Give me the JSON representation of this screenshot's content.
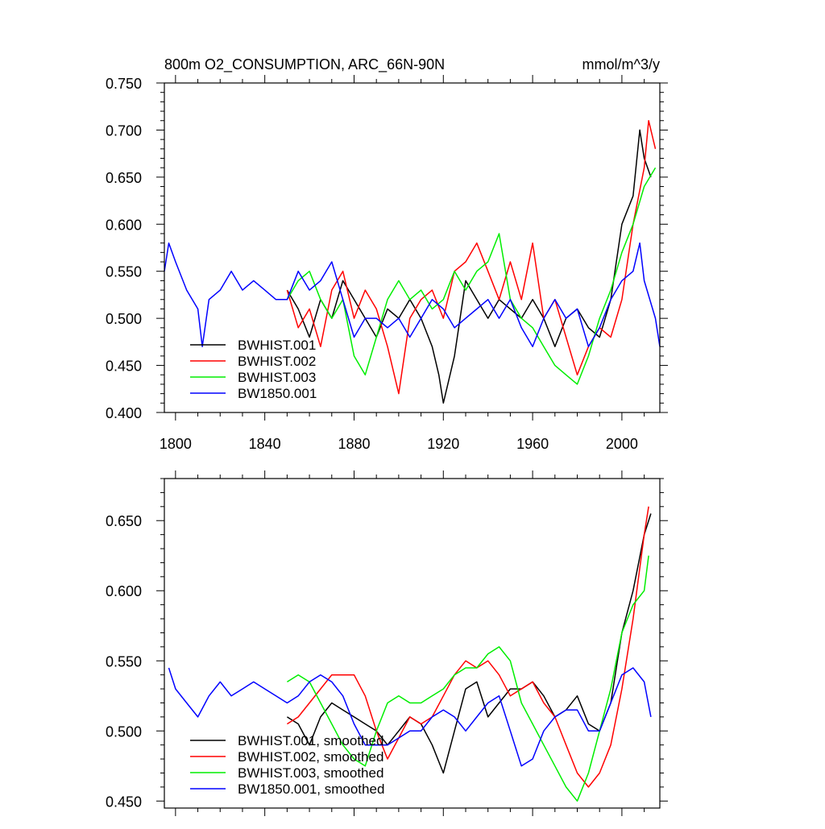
{
  "chart_data": [
    {
      "type": "line",
      "title": "800m O2_CONSUMPTION, ARC_66N-90N",
      "units": "mmol/m^3/y",
      "xlim": [
        1795,
        2017
      ],
      "ylim": [
        0.4,
        0.75
      ],
      "xticks": [
        1800,
        1840,
        1880,
        1920,
        1960,
        2000
      ],
      "yticks": [
        "0.400",
        "0.450",
        "0.500",
        "0.550",
        "0.600",
        "0.650",
        "0.700",
        "0.750"
      ],
      "legend_position": "bottom-left",
      "series": [
        {
          "name": "BWHIST.001",
          "color": "#000000",
          "x": [
            1850,
            1855,
            1860,
            1865,
            1870,
            1875,
            1880,
            1885,
            1890,
            1895,
            1900,
            1905,
            1910,
            1915,
            1918,
            1920,
            1925,
            1930,
            1935,
            1940,
            1945,
            1950,
            1955,
            1960,
            1965,
            1970,
            1975,
            1980,
            1985,
            1990,
            1995,
            2000,
            2005,
            2008,
            2010,
            2013
          ],
          "y": [
            0.53,
            0.51,
            0.48,
            0.52,
            0.5,
            0.54,
            0.52,
            0.5,
            0.48,
            0.51,
            0.5,
            0.52,
            0.5,
            0.47,
            0.44,
            0.41,
            0.46,
            0.54,
            0.52,
            0.5,
            0.52,
            0.51,
            0.5,
            0.52,
            0.5,
            0.47,
            0.5,
            0.51,
            0.49,
            0.48,
            0.52,
            0.6,
            0.63,
            0.7,
            0.67,
            0.65
          ]
        },
        {
          "name": "BWHIST.002",
          "color": "#ff0000",
          "x": [
            1850,
            1855,
            1860,
            1865,
            1870,
            1875,
            1880,
            1885,
            1890,
            1895,
            1900,
            1905,
            1910,
            1915,
            1920,
            1925,
            1930,
            1935,
            1940,
            1945,
            1950,
            1955,
            1960,
            1965,
            1970,
            1975,
            1980,
            1985,
            1990,
            1995,
            2000,
            2005,
            2010,
            2012,
            2015
          ],
          "y": [
            0.53,
            0.49,
            0.51,
            0.47,
            0.53,
            0.55,
            0.5,
            0.53,
            0.51,
            0.47,
            0.42,
            0.5,
            0.52,
            0.53,
            0.5,
            0.55,
            0.56,
            0.58,
            0.55,
            0.52,
            0.56,
            0.52,
            0.58,
            0.5,
            0.52,
            0.48,
            0.44,
            0.47,
            0.49,
            0.48,
            0.52,
            0.6,
            0.66,
            0.71,
            0.68
          ]
        },
        {
          "name": "BWHIST.003",
          "color": "#00ee00",
          "x": [
            1850,
            1855,
            1860,
            1865,
            1870,
            1875,
            1880,
            1885,
            1890,
            1895,
            1900,
            1905,
            1910,
            1915,
            1920,
            1925,
            1930,
            1935,
            1940,
            1945,
            1950,
            1955,
            1960,
            1965,
            1970,
            1975,
            1980,
            1985,
            1990,
            1995,
            2000,
            2005,
            2010,
            2015
          ],
          "y": [
            0.52,
            0.54,
            0.55,
            0.52,
            0.5,
            0.52,
            0.46,
            0.44,
            0.48,
            0.52,
            0.54,
            0.52,
            0.53,
            0.51,
            0.52,
            0.55,
            0.53,
            0.55,
            0.56,
            0.59,
            0.52,
            0.5,
            0.49,
            0.47,
            0.45,
            0.44,
            0.43,
            0.46,
            0.5,
            0.53,
            0.57,
            0.6,
            0.64,
            0.66
          ]
        },
        {
          "name": "BW1850.001",
          "color": "#0000ff",
          "x": [
            1795,
            1797,
            1800,
            1805,
            1810,
            1812,
            1815,
            1820,
            1825,
            1830,
            1835,
            1840,
            1845,
            1850,
            1855,
            1860,
            1865,
            1870,
            1875,
            1880,
            1885,
            1890,
            1895,
            1900,
            1905,
            1910,
            1915,
            1920,
            1925,
            1930,
            1935,
            1940,
            1945,
            1950,
            1955,
            1960,
            1965,
            1970,
            1975,
            1980,
            1985,
            1990,
            1995,
            2000,
            2005,
            2008,
            2010,
            2015,
            2017
          ],
          "y": [
            0.55,
            0.58,
            0.56,
            0.53,
            0.51,
            0.47,
            0.52,
            0.53,
            0.55,
            0.53,
            0.54,
            0.53,
            0.52,
            0.52,
            0.55,
            0.53,
            0.54,
            0.56,
            0.52,
            0.48,
            0.5,
            0.5,
            0.49,
            0.5,
            0.48,
            0.5,
            0.52,
            0.51,
            0.49,
            0.5,
            0.51,
            0.52,
            0.5,
            0.52,
            0.49,
            0.47,
            0.5,
            0.52,
            0.5,
            0.51,
            0.47,
            0.49,
            0.52,
            0.54,
            0.55,
            0.58,
            0.54,
            0.5,
            0.47
          ]
        }
      ]
    },
    {
      "type": "line",
      "xlim": [
        1795,
        2017
      ],
      "ylim": [
        0.445,
        0.68
      ],
      "yticks": [
        "0.450",
        "0.500",
        "0.550",
        "0.600",
        "0.650"
      ],
      "legend_position": "bottom-left",
      "series": [
        {
          "name": "BWHIST.001, smoothed",
          "color": "#000000",
          "x": [
            1850,
            1855,
            1860,
            1865,
            1870,
            1875,
            1880,
            1885,
            1890,
            1895,
            1900,
            1905,
            1910,
            1915,
            1920,
            1925,
            1930,
            1935,
            1940,
            1945,
            1950,
            1955,
            1960,
            1965,
            1970,
            1975,
            1980,
            1985,
            1990,
            1995,
            2000,
            2005,
            2010,
            2013
          ],
          "y": [
            0.51,
            0.505,
            0.49,
            0.51,
            0.52,
            0.515,
            0.51,
            0.505,
            0.5,
            0.49,
            0.5,
            0.51,
            0.505,
            0.49,
            0.47,
            0.5,
            0.53,
            0.535,
            0.51,
            0.52,
            0.53,
            0.53,
            0.535,
            0.525,
            0.51,
            0.515,
            0.525,
            0.505,
            0.5,
            0.52,
            0.57,
            0.6,
            0.64,
            0.655
          ]
        },
        {
          "name": "BWHIST.002, smoothed",
          "color": "#ff0000",
          "x": [
            1850,
            1855,
            1860,
            1865,
            1870,
            1875,
            1880,
            1885,
            1890,
            1895,
            1900,
            1905,
            1910,
            1915,
            1920,
            1925,
            1930,
            1935,
            1940,
            1945,
            1950,
            1955,
            1960,
            1965,
            1970,
            1975,
            1980,
            1985,
            1990,
            1995,
            2000,
            2005,
            2010,
            2012
          ],
          "y": [
            0.505,
            0.51,
            0.52,
            0.53,
            0.54,
            0.54,
            0.54,
            0.525,
            0.5,
            0.48,
            0.495,
            0.51,
            0.505,
            0.51,
            0.525,
            0.54,
            0.55,
            0.545,
            0.55,
            0.54,
            0.525,
            0.53,
            0.535,
            0.52,
            0.51,
            0.49,
            0.47,
            0.46,
            0.47,
            0.49,
            0.53,
            0.58,
            0.64,
            0.66
          ]
        },
        {
          "name": "BWHIST.003, smoothed",
          "color": "#00ee00",
          "x": [
            1850,
            1855,
            1860,
            1865,
            1870,
            1875,
            1880,
            1885,
            1890,
            1895,
            1900,
            1905,
            1910,
            1915,
            1920,
            1925,
            1930,
            1935,
            1940,
            1945,
            1950,
            1955,
            1960,
            1965,
            1970,
            1975,
            1980,
            1985,
            1990,
            1995,
            2000,
            2005,
            2010,
            2012
          ],
          "y": [
            0.535,
            0.54,
            0.535,
            0.52,
            0.505,
            0.49,
            0.48,
            0.475,
            0.5,
            0.52,
            0.525,
            0.52,
            0.52,
            0.525,
            0.53,
            0.54,
            0.545,
            0.545,
            0.555,
            0.56,
            0.55,
            0.52,
            0.505,
            0.49,
            0.475,
            0.46,
            0.45,
            0.47,
            0.5,
            0.53,
            0.57,
            0.59,
            0.6,
            0.625
          ]
        },
        {
          "name": "BW1850.001, smoothed",
          "color": "#0000ff",
          "x": [
            1797,
            1800,
            1805,
            1810,
            1815,
            1820,
            1825,
            1830,
            1835,
            1840,
            1845,
            1850,
            1855,
            1860,
            1865,
            1870,
            1875,
            1880,
            1885,
            1890,
            1895,
            1900,
            1905,
            1910,
            1915,
            1920,
            1925,
            1930,
            1935,
            1940,
            1945,
            1950,
            1955,
            1960,
            1965,
            1970,
            1975,
            1980,
            1985,
            1990,
            1995,
            2000,
            2005,
            2010,
            2013
          ],
          "y": [
            0.545,
            0.53,
            0.52,
            0.51,
            0.525,
            0.535,
            0.525,
            0.53,
            0.535,
            0.53,
            0.525,
            0.52,
            0.525,
            0.535,
            0.54,
            0.535,
            0.525,
            0.505,
            0.49,
            0.49,
            0.49,
            0.495,
            0.5,
            0.5,
            0.51,
            0.515,
            0.51,
            0.5,
            0.51,
            0.52,
            0.525,
            0.5,
            0.475,
            0.48,
            0.5,
            0.51,
            0.515,
            0.515,
            0.5,
            0.5,
            0.52,
            0.54,
            0.545,
            0.535,
            0.51
          ]
        }
      ]
    }
  ]
}
